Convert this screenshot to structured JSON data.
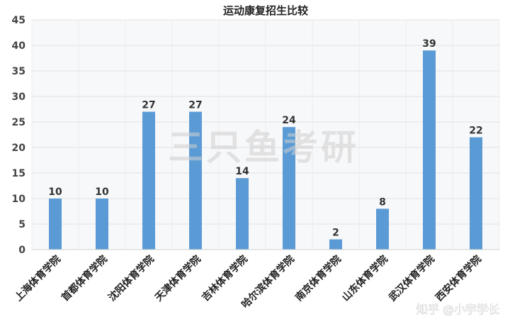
{
  "chart_data": {
    "type": "bar",
    "title": "运动康复招生比较",
    "categories": [
      "上海体育学院",
      "首都体育学院",
      "沈阳体育学院",
      "天津体育学院",
      "吉林体育学院",
      "哈尔滨体育学院",
      "南京体育学院",
      "山东体育学院",
      "武汉体育学院",
      "西安体育学院"
    ],
    "values": [
      10,
      10,
      27,
      27,
      14,
      24,
      2,
      8,
      39,
      22
    ],
    "xlabel": "",
    "ylabel": "",
    "ylim": [
      0,
      45
    ],
    "yticks": [
      0,
      5,
      10,
      15,
      20,
      25,
      30,
      35,
      40,
      45
    ],
    "grid": true,
    "bar_color": "#5b9bd5"
  },
  "watermark": "三只鱼考研",
  "credit": "知乎 @小宇学长"
}
